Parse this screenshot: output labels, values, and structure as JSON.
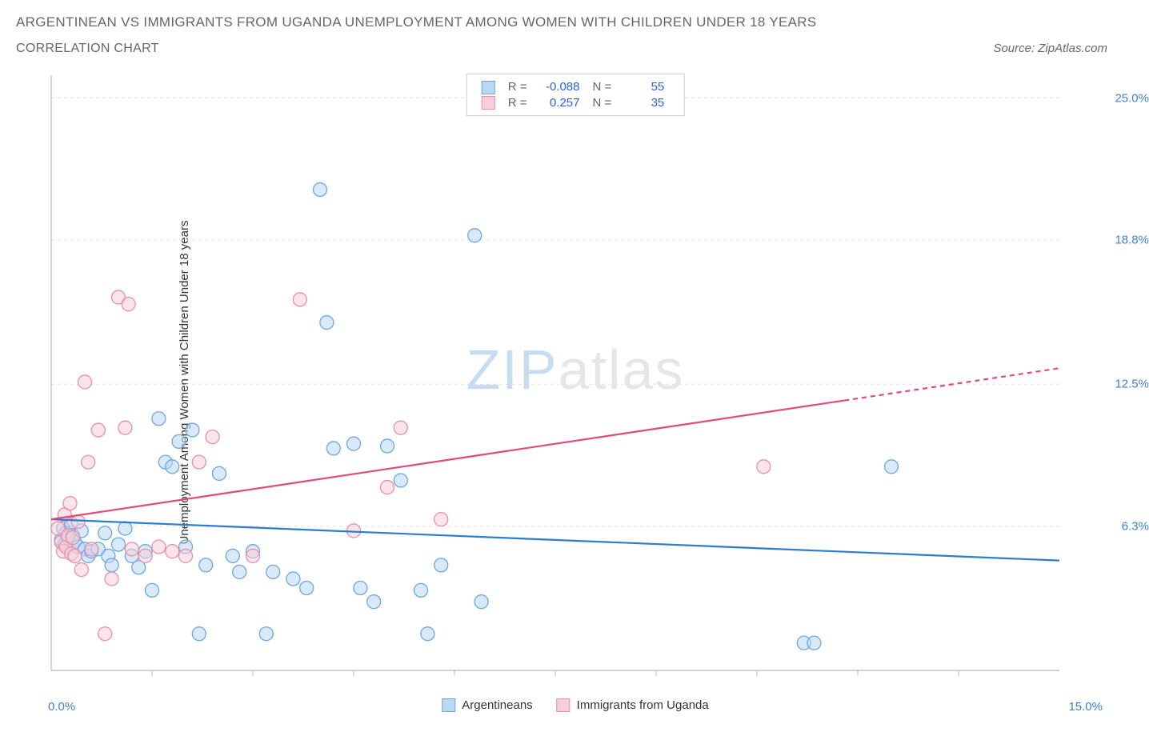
{
  "title": "ARGENTINEAN VS IMMIGRANTS FROM UGANDA UNEMPLOYMENT AMONG WOMEN WITH CHILDREN UNDER 18 YEARS",
  "subtitle": "CORRELATION CHART",
  "source_label": "Source: ZipAtlas.com",
  "watermark": {
    "part1": "ZIP",
    "part2": "atlas"
  },
  "chart": {
    "type": "scatter",
    "background_color": "#ffffff",
    "grid_color": "#e2e2e2",
    "axis_color": "#b8b8b8",
    "marker_radius": 8.5,
    "marker_opacity": 0.55,
    "line_width": 2.2,
    "x": {
      "min": 0.0,
      "max": 15.0,
      "tick_step": 1.5,
      "label_0": "0.0%",
      "label_max": "15.0%"
    },
    "y": {
      "min": 0.0,
      "max": 26.0,
      "ticks": [
        6.3,
        12.5,
        18.8,
        25.0
      ],
      "tick_labels": [
        "6.3%",
        "12.5%",
        "18.8%",
        "25.0%"
      ],
      "axis_label": "Unemployment Among Women with Children Under 18 years"
    },
    "series": [
      {
        "name": "Argentineans",
        "color": "#6aa7e4",
        "fill": "#bcd7f2",
        "line_color": "#2b7cd3",
        "R": "-0.088",
        "N": "55",
        "trend": {
          "x1": 0.0,
          "y1": 6.6,
          "x2": 15.0,
          "y2": 4.8,
          "dashed_from": null
        },
        "points": [
          [
            0.15,
            5.7
          ],
          [
            0.18,
            6.2
          ],
          [
            0.2,
            5.5
          ],
          [
            0.22,
            6.0
          ],
          [
            0.25,
            5.8
          ],
          [
            0.3,
            6.4
          ],
          [
            0.32,
            5.9
          ],
          [
            0.35,
            5.6
          ],
          [
            0.4,
            5.4
          ],
          [
            0.45,
            6.1
          ],
          [
            0.5,
            5.3
          ],
          [
            0.55,
            5.0
          ],
          [
            0.6,
            5.2
          ],
          [
            0.7,
            5.3
          ],
          [
            0.8,
            6.0
          ],
          [
            0.85,
            5.0
          ],
          [
            0.9,
            4.6
          ],
          [
            1.0,
            5.5
          ],
          [
            1.1,
            6.2
          ],
          [
            1.2,
            5.0
          ],
          [
            1.3,
            4.5
          ],
          [
            1.4,
            5.2
          ],
          [
            1.5,
            3.5
          ],
          [
            1.6,
            11.0
          ],
          [
            1.7,
            9.1
          ],
          [
            1.8,
            8.9
          ],
          [
            1.9,
            10.0
          ],
          [
            2.0,
            5.4
          ],
          [
            2.1,
            10.5
          ],
          [
            2.2,
            1.6
          ],
          [
            2.3,
            4.6
          ],
          [
            2.5,
            8.6
          ],
          [
            2.7,
            5.0
          ],
          [
            2.8,
            4.3
          ],
          [
            3.0,
            5.2
          ],
          [
            3.2,
            1.6
          ],
          [
            3.3,
            4.3
          ],
          [
            3.6,
            4.0
          ],
          [
            3.8,
            3.6
          ],
          [
            4.0,
            21.0
          ],
          [
            4.1,
            15.2
          ],
          [
            4.2,
            9.7
          ],
          [
            4.5,
            9.9
          ],
          [
            4.6,
            3.6
          ],
          [
            4.8,
            3.0
          ],
          [
            5.0,
            9.8
          ],
          [
            5.2,
            8.3
          ],
          [
            5.5,
            3.5
          ],
          [
            5.6,
            1.6
          ],
          [
            5.8,
            4.6
          ],
          [
            6.3,
            19.0
          ],
          [
            6.4,
            3.0
          ],
          [
            11.2,
            1.2
          ],
          [
            11.35,
            1.2
          ],
          [
            12.5,
            8.9
          ]
        ]
      },
      {
        "name": "Immigrants from Uganda",
        "color": "#e98fa8",
        "fill": "#f7cfd9",
        "line_color": "#e24a78",
        "R": "0.257",
        "N": "35",
        "trend": {
          "x1": 0.0,
          "y1": 6.6,
          "x2": 15.0,
          "y2": 13.2,
          "dashed_from": 11.8
        },
        "points": [
          [
            0.1,
            6.2
          ],
          [
            0.15,
            5.6
          ],
          [
            0.18,
            5.2
          ],
          [
            0.2,
            6.8
          ],
          [
            0.22,
            5.4
          ],
          [
            0.25,
            5.9
          ],
          [
            0.28,
            7.3
          ],
          [
            0.3,
            5.1
          ],
          [
            0.32,
            5.8
          ],
          [
            0.35,
            5.0
          ],
          [
            0.4,
            6.5
          ],
          [
            0.45,
            4.4
          ],
          [
            0.5,
            12.6
          ],
          [
            0.55,
            9.1
          ],
          [
            0.6,
            5.3
          ],
          [
            0.7,
            10.5
          ],
          [
            0.8,
            1.6
          ],
          [
            0.9,
            4.0
          ],
          [
            1.0,
            16.3
          ],
          [
            1.1,
            10.6
          ],
          [
            1.15,
            16.0
          ],
          [
            1.2,
            5.3
          ],
          [
            1.4,
            5.0
          ],
          [
            1.6,
            5.4
          ],
          [
            1.8,
            5.2
          ],
          [
            2.0,
            5.0
          ],
          [
            2.2,
            9.1
          ],
          [
            2.4,
            10.2
          ],
          [
            3.0,
            5.0
          ],
          [
            3.7,
            16.2
          ],
          [
            4.5,
            6.1
          ],
          [
            5.0,
            8.0
          ],
          [
            5.2,
            10.6
          ],
          [
            5.8,
            6.6
          ],
          [
            10.6,
            8.9
          ]
        ]
      }
    ],
    "legend_top": {
      "cols": [
        "R =",
        "N ="
      ]
    },
    "legend_bottom_labels": [
      "Argentineans",
      "Immigrants from Uganda"
    ]
  }
}
